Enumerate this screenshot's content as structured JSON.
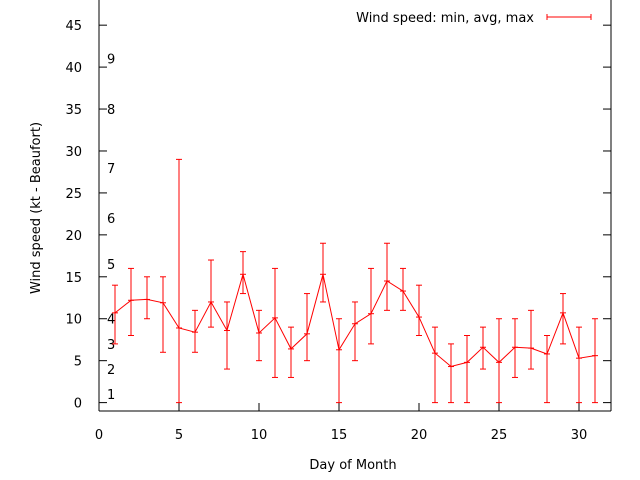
{
  "chart_data": {
    "type": "line",
    "title": "",
    "xlabel": "Day of Month",
    "ylabel": "Wind speed (kt - Beaufort)",
    "xlim": [
      0,
      32
    ],
    "ylim": [
      -1,
      48
    ],
    "xticks": [
      "0",
      "5",
      "10",
      "15",
      "20",
      "25",
      "30"
    ],
    "xtick_values": [
      0,
      5,
      10,
      15,
      20,
      25,
      30
    ],
    "yticks": [
      "0",
      "5",
      "10",
      "15",
      "20",
      "25",
      "30",
      "35",
      "40",
      "45"
    ],
    "ytick_values": [
      0,
      5,
      10,
      15,
      20,
      25,
      30,
      35,
      40,
      45
    ],
    "beaufort_labels": [
      "1",
      "2",
      "3",
      "4",
      "5",
      "6",
      "7",
      "8",
      "9"
    ],
    "beaufort_values": [
      1,
      4,
      7,
      10,
      16.5,
      22,
      28,
      35,
      41
    ],
    "grid": false,
    "legend_position": "top-right",
    "series": [
      {
        "name": "Wind speed: min, avg, max",
        "color": "#ff0000",
        "x": [
          1,
          2,
          3,
          4,
          5,
          6,
          7,
          8,
          9,
          10,
          11,
          12,
          13,
          14,
          15,
          16,
          17,
          18,
          19,
          20,
          21,
          22,
          23,
          24,
          25,
          26,
          27,
          28,
          29,
          30,
          31
        ],
        "avg": [
          10.7,
          12.2,
          12.3,
          11.9,
          8.9,
          8.4,
          12.0,
          8.6,
          15.3,
          8.3,
          10.1,
          6.4,
          8.2,
          15.3,
          6.3,
          9.4,
          10.6,
          14.5,
          13.3,
          10.2,
          5.9,
          4.3,
          4.8,
          6.6,
          4.8,
          6.6,
          6.5,
          5.8,
          10.7,
          5.3,
          5.6
        ],
        "min": [
          7,
          8,
          10,
          6,
          0,
          6,
          9,
          4,
          13,
          5,
          3,
          3,
          5,
          12,
          0,
          5,
          7,
          11,
          11,
          8,
          0,
          0,
          0,
          4,
          0,
          3,
          4,
          0,
          7,
          0,
          0
        ],
        "max": [
          14,
          16,
          15,
          15,
          29,
          11,
          17,
          12,
          18,
          11,
          16,
          9,
          13,
          19,
          10,
          12,
          16,
          19,
          16,
          14,
          9,
          7,
          8,
          9,
          10,
          10,
          11,
          8,
          13,
          9,
          10
        ]
      }
    ]
  }
}
